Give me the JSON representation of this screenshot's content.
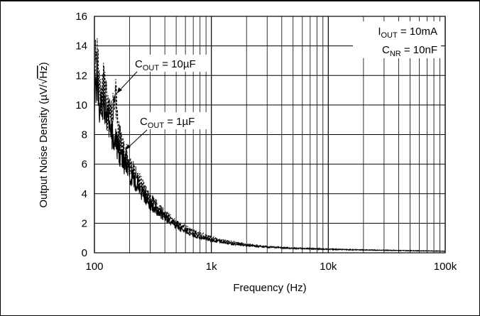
{
  "chart_data": {
    "type": "line",
    "title": "",
    "xlabel": "Frequency (Hz)",
    "ylabel": "Output Noise Density (µV/√Hz)",
    "x_scale": "log",
    "xlim": [
      100,
      100000
    ],
    "ylim": [
      0,
      16
    ],
    "grid": true,
    "x_tick_labels": [
      "100",
      "1k",
      "10k",
      "100k"
    ],
    "x_tick_values": [
      100,
      1000,
      10000,
      100000
    ],
    "y_tick_labels": [
      "0",
      "2",
      "4",
      "6",
      "8",
      "10",
      "12",
      "14",
      "16"
    ],
    "y_tick_values": [
      0,
      2,
      4,
      6,
      8,
      10,
      12,
      14,
      16
    ],
    "conditions": [
      "I_OUT = 10mA",
      "C_NR = 10nF"
    ],
    "series": [
      {
        "name": "C_OUT = 10µF",
        "style": "dashed",
        "x": [
          100,
          105,
          110,
          115,
          120,
          130,
          140,
          150,
          160,
          180,
          200,
          250,
          300,
          400,
          500,
          700,
          1000,
          1500,
          2000,
          3000,
          5000,
          10000,
          20000,
          50000,
          100000
        ],
        "y": [
          12.5,
          14.0,
          11.5,
          10.5,
          11.5,
          9.5,
          9.0,
          11.2,
          8.0,
          6.8,
          6.0,
          4.6,
          3.6,
          2.6,
          2.0,
          1.4,
          1.0,
          0.7,
          0.55,
          0.42,
          0.32,
          0.25,
          0.2,
          0.15,
          0.12
        ]
      },
      {
        "name": "C_OUT = 1µF",
        "style": "solid",
        "x": [
          100,
          105,
          110,
          115,
          120,
          130,
          140,
          150,
          160,
          180,
          200,
          250,
          300,
          400,
          500,
          700,
          1000,
          1500,
          2000,
          3000,
          5000,
          10000,
          20000,
          50000,
          100000
        ],
        "y": [
          11.0,
          11.8,
          10.0,
          9.5,
          10.5,
          8.8,
          8.0,
          7.5,
          7.0,
          6.0,
          5.4,
          4.2,
          3.3,
          2.4,
          1.8,
          1.2,
          0.85,
          0.62,
          0.5,
          0.4,
          0.3,
          0.24,
          0.19,
          0.14,
          0.11
        ]
      }
    ]
  }
}
